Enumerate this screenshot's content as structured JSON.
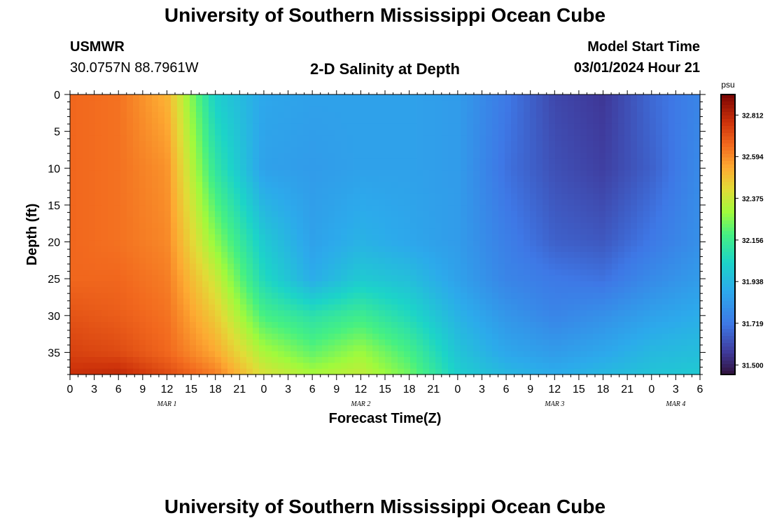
{
  "header": {
    "title": "University of Southern Mississippi Ocean Cube",
    "station_name": "USMWR",
    "station_coords": "30.0757N  88.7961W",
    "plot_title": "2-D Salinity at Depth",
    "model_start_label": "Model Start Time",
    "model_start_value": "03/01/2024 Hour 21"
  },
  "footer": {
    "title": "University of Southern Mississippi Ocean Cube"
  },
  "chart_data": {
    "type": "heatmap",
    "title": "2-D Salinity at Depth",
    "xlabel": "Forecast Time(Z)",
    "ylabel": "Depth (ft)",
    "x_ticks": [
      "0",
      "3",
      "6",
      "9",
      "12",
      "15",
      "18",
      "21",
      "0",
      "3",
      "6",
      "9",
      "12",
      "15",
      "18",
      "21",
      "0",
      "3",
      "6",
      "9",
      "12",
      "15",
      "18",
      "21",
      "0",
      "3",
      "6"
    ],
    "date_labels": [
      {
        "label": "MAR 1",
        "at_tick": 4
      },
      {
        "label": "MAR 2",
        "at_tick": 12
      },
      {
        "label": "MAR 3",
        "at_tick": 20
      },
      {
        "label": "MAR 4",
        "at_tick": 25
      }
    ],
    "y_ticks": [
      0,
      5,
      10,
      15,
      20,
      25,
      30,
      35
    ],
    "ylim": [
      0,
      38
    ],
    "x_range_hours": [
      0,
      78
    ],
    "colorbar": {
      "unit": "psu",
      "min": 31.45,
      "max": 32.92,
      "ticks": [
        "32.812",
        "32.594",
        "32.375",
        "32.156",
        "31.938",
        "31.719",
        "31.500"
      ]
    },
    "x_hours": [
      0,
      6,
      12,
      18,
      24,
      30,
      36,
      42,
      48,
      54,
      60,
      66,
      72,
      78
    ],
    "depths_ft": [
      0,
      10,
      20,
      25,
      30,
      35,
      38
    ],
    "salinity": [
      [
        32.66,
        32.64,
        32.52,
        32.02,
        31.88,
        31.86,
        31.86,
        31.86,
        31.84,
        31.72,
        31.6,
        31.56,
        31.68,
        31.76
      ],
      [
        32.66,
        32.64,
        32.58,
        32.12,
        31.86,
        31.84,
        31.86,
        31.86,
        31.84,
        31.7,
        31.62,
        31.58,
        31.66,
        31.78
      ],
      [
        32.66,
        32.64,
        32.6,
        32.28,
        32.0,
        31.86,
        31.92,
        31.88,
        31.84,
        31.74,
        31.66,
        31.64,
        31.72,
        31.8
      ],
      [
        32.66,
        32.66,
        32.62,
        32.38,
        32.06,
        31.9,
        32.0,
        31.96,
        31.86,
        31.76,
        31.72,
        31.7,
        31.78,
        31.84
      ],
      [
        32.7,
        32.68,
        32.64,
        32.46,
        32.18,
        32.1,
        32.16,
        32.06,
        31.92,
        31.82,
        31.76,
        31.8,
        31.86,
        31.9
      ],
      [
        32.74,
        32.72,
        32.66,
        32.54,
        32.32,
        32.22,
        32.3,
        32.18,
        31.98,
        31.88,
        31.84,
        31.88,
        31.94,
        31.96
      ],
      [
        32.78,
        32.8,
        32.72,
        32.62,
        32.4,
        32.32,
        32.36,
        32.24,
        32.02,
        31.94,
        31.9,
        31.94,
        31.98,
        32.0
      ]
    ]
  }
}
